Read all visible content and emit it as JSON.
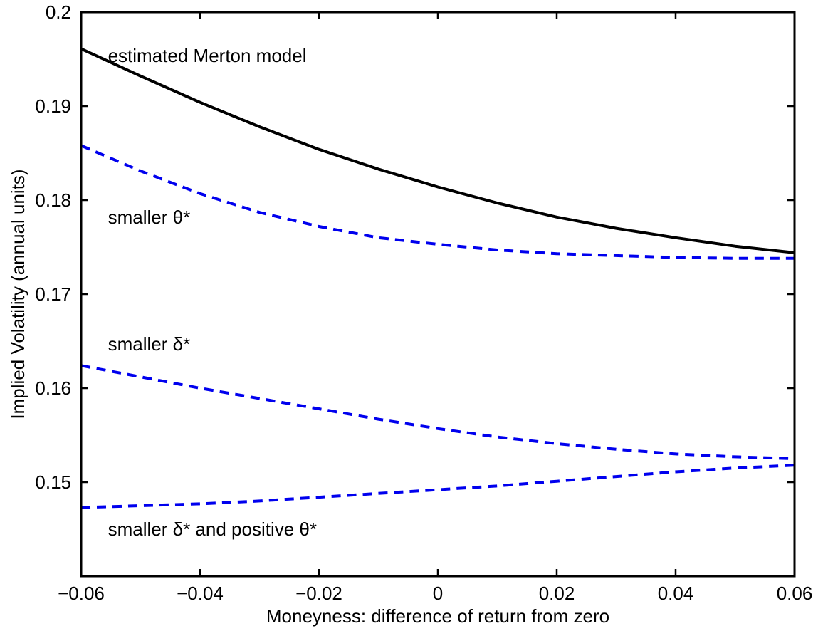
{
  "chart_data": {
    "type": "line",
    "xlabel": "Moneyness:  difference of return from zero",
    "ylabel": "Implied Volatility (annual units)",
    "xlim": [
      -0.06,
      0.06
    ],
    "ylim": [
      0.14,
      0.2
    ],
    "x_ticks": [
      -0.06,
      -0.04,
      -0.02,
      0,
      0.02,
      0.04,
      0.06
    ],
    "x_tick_labels": [
      "−0.06",
      "−0.04",
      "−0.02",
      "0",
      "0.02",
      "0.04",
      "0.06"
    ],
    "y_ticks": [
      0.15,
      0.16,
      0.17,
      0.18,
      0.19,
      0.2
    ],
    "y_tick_labels": [
      "0.15",
      "0.16",
      "0.17",
      "0.18",
      "0.19",
      "0.2"
    ],
    "grid": false,
    "x": [
      -0.06,
      -0.05,
      -0.04,
      -0.03,
      -0.02,
      -0.01,
      0,
      0.01,
      0.02,
      0.03,
      0.04,
      0.05,
      0.06
    ],
    "series": [
      {
        "color": "#000000",
        "style": "solid",
        "values": [
          0.1961,
          0.1932,
          0.1904,
          0.1878,
          0.1854,
          0.1833,
          0.1814,
          0.1797,
          0.1782,
          0.177,
          0.176,
          0.1751,
          0.1744
        ]
      },
      {
        "color": "#0000ee",
        "style": "dashed",
        "values": [
          0.1858,
          0.1831,
          0.1807,
          0.1787,
          0.1772,
          0.176,
          0.1753,
          0.1747,
          0.1743,
          0.1741,
          0.1739,
          0.1738,
          0.1738
        ]
      },
      {
        "color": "#0000ee",
        "style": "dashed",
        "values": [
          0.1624,
          0.1612,
          0.16,
          0.1589,
          0.1578,
          0.1567,
          0.1557,
          0.1548,
          0.1541,
          0.1535,
          0.153,
          0.1527,
          0.1525
        ]
      },
      {
        "color": "#0000ee",
        "style": "dashed",
        "values": [
          0.1473,
          0.1475,
          0.1477,
          0.148,
          0.1484,
          0.1488,
          0.1492,
          0.1496,
          0.1501,
          0.1506,
          0.1511,
          0.1515,
          0.1518
        ]
      }
    ],
    "annotations": [
      {
        "text": "estimated Merton model",
        "x": -0.0555,
        "y": 0.1947
      },
      {
        "text": "smaller θ*",
        "x": -0.0555,
        "y": 0.1775
      },
      {
        "text": "smaller δ*",
        "x": -0.0555,
        "y": 0.164
      },
      {
        "text": "smaller δ* and positive θ*",
        "x": -0.0555,
        "y": 0.1443
      }
    ]
  }
}
